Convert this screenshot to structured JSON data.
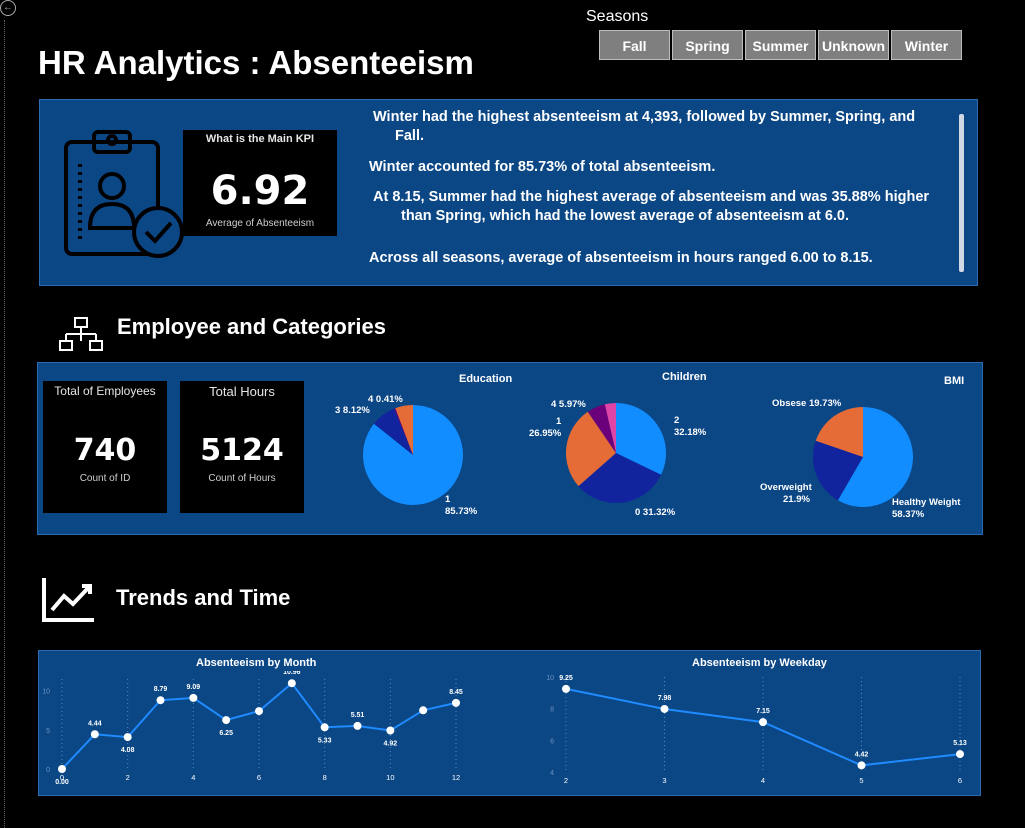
{
  "header": {
    "title": "HR Analytics : Absenteeism"
  },
  "slicer": {
    "label": "Seasons",
    "options": [
      "Fall",
      "Spring",
      "Summer",
      "Unknown",
      "Winter"
    ]
  },
  "kpi_main": {
    "heading": "What is the Main KPI",
    "value": "6.92",
    "caption": "Average of Absenteeism"
  },
  "insights": {
    "line1a": "Winter had the highest absenteeism at 4,393, followed by Summer, Spring, and",
    "line1b": "Fall.",
    "line2": "Winter accounted for 85.73% of total absenteeism.",
    "line3a": "At 8.15, Summer had the highest average of absenteeism and was 35.88% higher",
    "line3b": "than  Spring, which had the lowest average of absenteeism at 6.0.",
    "line4": "Across all seasons, average of absenteeism in hours ranged 6.00 to 8.15."
  },
  "section_employee": {
    "title": "Employee and Categories",
    "total_employees": {
      "heading": "Total of Employees",
      "value": "740",
      "caption": "Count of ID"
    },
    "total_hours": {
      "heading": "Total Hours",
      "value": "5124",
      "caption": "Count of Hours"
    }
  },
  "section_trends": {
    "title": "Trends and Time"
  },
  "colors": {
    "panel": "#0b4685",
    "blue": "#118dff",
    "navy": "#12239e",
    "orange": "#e66c37",
    "purple": "#6b007b",
    "pink": "#e044a7",
    "line": "#1f8bff"
  },
  "icons": [
    "back-arrow-icon",
    "clipboard-check-icon",
    "org-chart-icon",
    "trend-chart-icon"
  ],
  "chart_data": [
    {
      "type": "pie",
      "title": "Education",
      "slices": [
        {
          "label": "1",
          "value": 85.73,
          "label_text": "1",
          "pct_text": "85.73%",
          "color": "#118dff"
        },
        {
          "label": "3",
          "value": 8.12,
          "label_text": "3 8.12%",
          "color": "#12239e"
        },
        {
          "label": "4",
          "value": 0.41,
          "label_text": "4 0.41%",
          "color": "#6b007b"
        },
        {
          "label": "2",
          "value": 5.74,
          "color": "#e66c37"
        }
      ]
    },
    {
      "type": "pie",
      "title": "Children",
      "slices": [
        {
          "label": "2",
          "value": 32.18,
          "label_text": "2",
          "pct_text": "32.18%",
          "color": "#118dff"
        },
        {
          "label": "0",
          "value": 31.32,
          "label_text": "0 31.32%",
          "color": "#12239e"
        },
        {
          "label": "1",
          "value": 26.95,
          "label_text": "1",
          "pct_text": "26.95%",
          "color": "#e66c37"
        },
        {
          "label": "4",
          "value": 5.97,
          "label_text": "4 5.97%",
          "color": "#6b007b"
        },
        {
          "label": "3",
          "value": 3.58,
          "color": "#e044a7"
        }
      ]
    },
    {
      "type": "pie",
      "title": "BMI",
      "slices": [
        {
          "label": "Healthy Weight",
          "value": 58.37,
          "label_text": "Healthy Weight",
          "pct_text": "58.37%",
          "color": "#118dff"
        },
        {
          "label": "Overweight",
          "value": 21.9,
          "label_text": "Overweight",
          "pct_text": "21.9%",
          "color": "#12239e"
        },
        {
          "label": "Obsese",
          "value": 19.73,
          "label_text": "Obsese 19.73%",
          "color": "#e66c37"
        }
      ]
    },
    {
      "type": "line",
      "title": "Absenteeism by Month",
      "x": [
        0,
        1,
        2,
        3,
        4,
        5,
        6,
        7,
        8,
        9,
        10,
        11,
        12
      ],
      "y": [
        0.0,
        4.44,
        4.08,
        8.79,
        9.09,
        6.25,
        7.4,
        10.96,
        5.33,
        5.51,
        4.92,
        7.5,
        8.45
      ],
      "point_labels": [
        "0.00",
        "4.44",
        "4.08",
        "8.79",
        "9.09",
        "6.25",
        "",
        "10.96",
        "5.33",
        "5.51",
        "4.92",
        "",
        "8.45"
      ],
      "x_ticks": [
        "0",
        "2",
        "4",
        "6",
        "8",
        "10",
        "12"
      ],
      "y_ticks": [
        "0",
        "5",
        "10"
      ],
      "xlim": [
        0,
        12
      ],
      "ylim": [
        0,
        11.5
      ]
    },
    {
      "type": "line",
      "title": "Absenteeism by Weekday",
      "x": [
        2,
        3,
        4,
        5,
        6
      ],
      "y": [
        9.25,
        7.98,
        7.15,
        4.42,
        5.13
      ],
      "point_labels": [
        "9.25",
        "7.98",
        "7.15",
        "4.42",
        "5.13"
      ],
      "x_ticks": [
        "2",
        "3",
        "4",
        "5",
        "6"
      ],
      "y_ticks": [
        "4",
        "6",
        "8",
        "10"
      ],
      "xlim": [
        2,
        6
      ],
      "ylim": [
        4,
        10
      ]
    }
  ]
}
